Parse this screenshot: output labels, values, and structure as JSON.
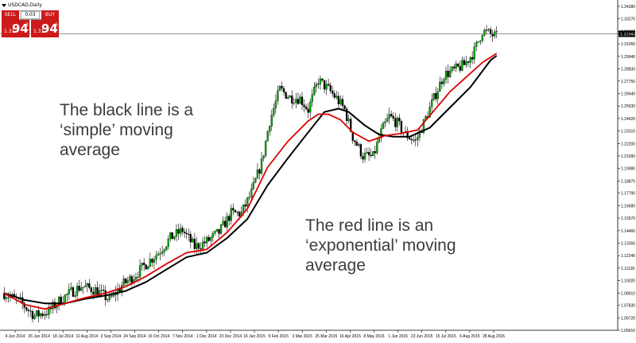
{
  "window_title": "USDCAD,Daily",
  "trade_panel": {
    "sell_label": "SELL",
    "buy_label": "BUY",
    "lot_value": "0.03",
    "sell_price": {
      "prefix": "1.31",
      "big": "94",
      "sup": "3"
    },
    "buy_price": {
      "prefix": "1.31",
      "big": "94",
      "sup": "6"
    }
  },
  "annotations": {
    "simple": "The black line is a ‘simple’ moving average",
    "exponential": "The red line is an ‘exponential’ moving average"
  },
  "current_price_label": "1.31943",
  "colors": {
    "candle_up": "#00aa00",
    "candle_down": "#000000",
    "sma": "#000000",
    "ema": "#dd0000",
    "price_line": "#707070",
    "axis": "#000000"
  },
  "chart_data": {
    "type": "line",
    "symbol": "USDCAD",
    "timeframe": "Daily",
    "y_ticks": [
      "1.34380",
      "1.33270",
      "1.32160",
      "1.31050",
      "1.29940",
      "1.28830",
      "1.27750",
      "1.26640",
      "1.25530",
      "1.24420",
      "1.23310",
      "1.22200",
      "1.21090",
      "1.19980",
      "1.18870",
      "1.17790",
      "1.16680",
      "1.15570",
      "1.14460",
      "1.13350",
      "1.12240",
      "1.11130",
      "1.10020",
      "1.08910",
      "1.07830",
      "1.06720",
      "1.05610"
    ],
    "ylim": [
      1.0561,
      1.3438
    ],
    "x_ticks": [
      "4 Jun 2014",
      "26 Jun 2014",
      "18 Jul 2014",
      "11 Aug 2014",
      "2 Sep 2014",
      "24 Sep 2014",
      "16 Oct 2014",
      "7 Nov 2014",
      "1 Dec 2014",
      "23 Dec 2014",
      "16 Jan 2015",
      "9 Feb 2015",
      "3 Mar 2015",
      "25 Mar 2015",
      "16 Apr 2015",
      "8 May 2015",
      "1 Jun 2015",
      "23 Jun 2015",
      "15 Jul 2015",
      "6 Aug 2015",
      "28 Aug 2015"
    ],
    "price_path": [
      [
        0,
        1.089
      ],
      [
        8,
        1.081
      ],
      [
        15,
        1.069
      ],
      [
        22,
        1.073
      ],
      [
        27,
        1.082
      ],
      [
        33,
        1.09
      ],
      [
        38,
        1.095
      ],
      [
        45,
        1.092
      ],
      [
        52,
        1.083
      ],
      [
        58,
        1.096
      ],
      [
        64,
        1.104
      ],
      [
        70,
        1.115
      ],
      [
        76,
        1.125
      ],
      [
        82,
        1.138
      ],
      [
        88,
        1.145
      ],
      [
        94,
        1.13
      ],
      [
        100,
        1.135
      ],
      [
        106,
        1.143
      ],
      [
        112,
        1.16
      ],
      [
        117,
        1.16
      ],
      [
        122,
        1.178
      ],
      [
        127,
        1.205
      ],
      [
        131,
        1.242
      ],
      [
        136,
        1.27
      ],
      [
        141,
        1.263
      ],
      [
        146,
        1.262
      ],
      [
        150,
        1.252
      ],
      [
        155,
        1.278
      ],
      [
        160,
        1.27
      ],
      [
        164,
        1.262
      ],
      [
        168,
        1.252
      ],
      [
        172,
        1.228
      ],
      [
        177,
        1.211
      ],
      [
        182,
        1.21
      ],
      [
        186,
        1.232
      ],
      [
        190,
        1.246
      ],
      [
        194,
        1.24
      ],
      [
        198,
        1.23
      ],
      [
        203,
        1.224
      ],
      [
        207,
        1.24
      ],
      [
        212,
        1.262
      ],
      [
        217,
        1.283
      ],
      [
        222,
        1.287
      ],
      [
        227,
        1.292
      ],
      [
        232,
        1.304
      ],
      [
        236,
        1.322
      ],
      [
        240,
        1.319
      ],
      [
        243,
        1.317
      ]
    ],
    "series": [
      {
        "name": "",
        "points": [
          [
            0,
            1.089
          ],
          [
            10,
            1.083
          ],
          [
            20,
            1.08
          ],
          [
            30,
            1.08
          ],
          [
            40,
            1.084
          ],
          [
            50,
            1.087
          ],
          [
            60,
            1.091
          ],
          [
            70,
            1.099
          ],
          [
            80,
            1.11
          ],
          [
            90,
            1.121
          ],
          [
            100,
            1.125
          ],
          [
            110,
            1.138
          ],
          [
            120,
            1.155
          ],
          [
            130,
            1.185
          ],
          [
            140,
            1.209
          ],
          [
            150,
            1.232
          ],
          [
            158,
            1.25
          ],
          [
            165,
            1.253
          ],
          [
            170,
            1.25
          ],
          [
            178,
            1.238
          ],
          [
            185,
            1.23
          ],
          [
            192,
            1.228
          ],
          [
            200,
            1.228
          ],
          [
            210,
            1.236
          ],
          [
            220,
            1.254
          ],
          [
            230,
            1.272
          ],
          [
            240,
            1.296
          ],
          [
            243,
            1.3
          ]
        ]
      },
      {
        "name": "",
        "points": [
          [
            0,
            1.089
          ],
          [
            10,
            1.079
          ],
          [
            20,
            1.075
          ],
          [
            30,
            1.08
          ],
          [
            40,
            1.085
          ],
          [
            50,
            1.089
          ],
          [
            60,
            1.095
          ],
          [
            70,
            1.104
          ],
          [
            80,
            1.115
          ],
          [
            90,
            1.125
          ],
          [
            100,
            1.128
          ],
          [
            110,
            1.143
          ],
          [
            120,
            1.164
          ],
          [
            130,
            1.201
          ],
          [
            140,
            1.224
          ],
          [
            150,
            1.242
          ],
          [
            155,
            1.248
          ],
          [
            160,
            1.248
          ],
          [
            166,
            1.243
          ],
          [
            172,
            1.232
          ],
          [
            180,
            1.224
          ],
          [
            188,
            1.229
          ],
          [
            196,
            1.231
          ],
          [
            204,
            1.234
          ],
          [
            212,
            1.251
          ],
          [
            220,
            1.268
          ],
          [
            228,
            1.281
          ],
          [
            236,
            1.294
          ],
          [
            243,
            1.302
          ]
        ]
      }
    ]
  }
}
